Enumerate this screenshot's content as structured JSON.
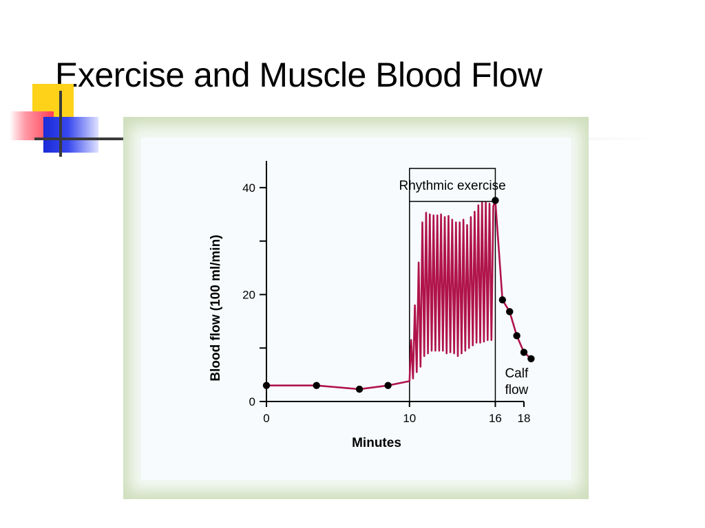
{
  "slide": {
    "title": "Exercise and Muscle Blood Flow"
  },
  "chart_data": {
    "type": "line",
    "title": "",
    "xlabel": "Minutes",
    "ylabel": "Blood flow (100 ml/min)",
    "xlim": [
      0,
      18
    ],
    "ylim": [
      0,
      40
    ],
    "x_ticks": [
      {
        "value": 0,
        "label": "0"
      },
      {
        "value": 10,
        "label": "10"
      },
      {
        "value": 16,
        "label": "16"
      },
      {
        "value": 18,
        "label": "18"
      }
    ],
    "y_ticks": [
      {
        "value": 0,
        "label": "0"
      },
      {
        "value": 10,
        "label": ""
      },
      {
        "value": 20,
        "label": "20"
      },
      {
        "value": 30,
        "label": ""
      },
      {
        "value": 40,
        "label": "40"
      }
    ],
    "grid": false,
    "annotations": {
      "exercise_box": {
        "label": "Rhythmic exercise",
        "x_start": 10,
        "x_end": 16
      },
      "calf_flow": "Calf flow"
    },
    "series": [
      {
        "color": "#b0134a",
        "marker_points": [
          {
            "x": 0,
            "y": 3
          },
          {
            "x": 3.5,
            "y": 3
          },
          {
            "x": 6.5,
            "y": 2.3
          },
          {
            "x": 8.5,
            "y": 3
          },
          {
            "x": 16,
            "y": 37.6
          },
          {
            "x": 16.5,
            "y": 19
          },
          {
            "x": 17,
            "y": 16.8
          },
          {
            "x": 17.5,
            "y": 12.3
          },
          {
            "x": 18,
            "y": 9.2
          },
          {
            "x": 18.5,
            "y": 8
          }
        ],
        "oscillation": {
          "x_start": 10,
          "x_end": 16,
          "peaks": [
            11.5,
            18,
            26,
            33.5,
            35.3,
            35,
            34.8,
            34.8,
            35,
            34.5,
            34.7,
            34,
            33.5,
            33.5,
            34,
            33,
            34.5,
            35.5,
            36.7,
            37.2,
            37.2,
            37,
            36.5
          ],
          "troughs": [
            4.3,
            5.5,
            6.5,
            8.5,
            9,
            9.5,
            9.5,
            9.5,
            9.5,
            9,
            9.2,
            9,
            8.5,
            9,
            9.5,
            10,
            10.5,
            11,
            11,
            11.2,
            11.5,
            11.5,
            11.5
          ]
        }
      }
    ]
  }
}
